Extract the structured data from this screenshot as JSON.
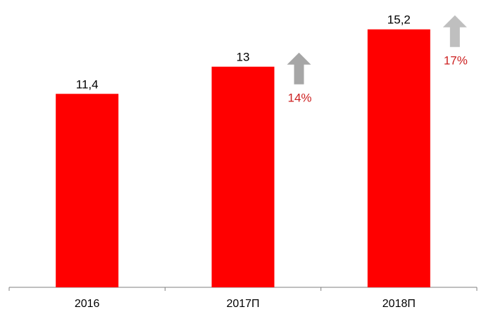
{
  "chart_data": {
    "type": "bar",
    "categories": [
      "2016",
      "2017П",
      "2018П"
    ],
    "values": [
      11.4,
      13,
      15.2
    ],
    "value_labels": [
      "11,4",
      "13",
      "15,2"
    ],
    "growth": [
      null,
      {
        "label": "14%",
        "arrow_color": "#a6a6a6"
      },
      {
        "label": "17%",
        "arrow_color": "#bfbfbf"
      }
    ],
    "title": "",
    "xlabel": "",
    "ylabel": "",
    "ylim": [
      0,
      16.1
    ],
    "grid": false,
    "legend": "none",
    "colors": {
      "bar": "#ff0000",
      "growth_text": "#cc1f1f",
      "axis": "#7f7f7f"
    }
  }
}
